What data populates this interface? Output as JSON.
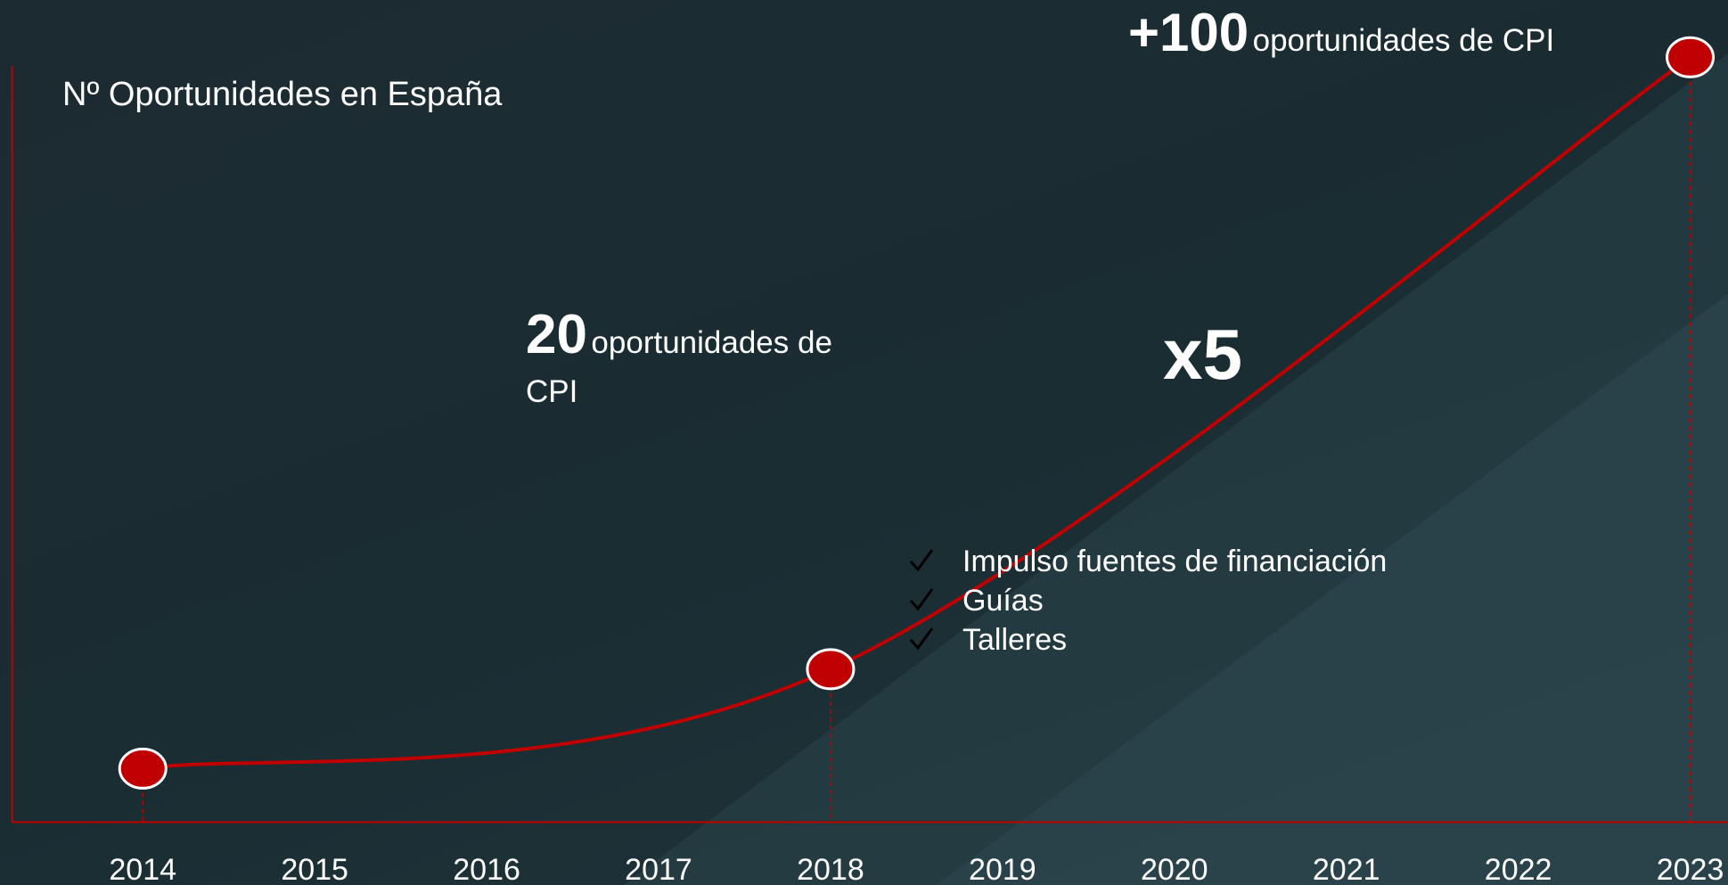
{
  "chart_data": {
    "type": "line",
    "title": "Nº Oportunidades en España",
    "x": [
      2014,
      2018,
      2023
    ],
    "values": [
      7,
      20,
      100
    ],
    "value_labels": [
      null,
      "20",
      "+100"
    ],
    "color": "#c00000",
    "xlim": [
      2013.24,
      2023.22
    ],
    "xticks": [
      2014,
      2015,
      2016,
      2017,
      2018,
      2019,
      2020,
      2021,
      2022,
      2023
    ],
    "ylim": [
      0,
      100
    ],
    "annotations": [
      "oportunidades de CPI",
      "oportunidades de CPI",
      "x5"
    ],
    "notes": [
      "Impulso fuentes de financiación",
      "Guías",
      "Talleres"
    ]
  }
}
